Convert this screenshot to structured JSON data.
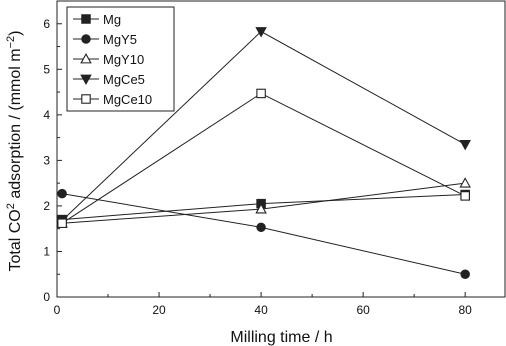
{
  "chart_data": {
    "type": "line",
    "x": [
      1,
      40,
      80
    ],
    "xlabel": "Milling time / h",
    "ylabel": "Total CO2 adsorption / (mmol m−2)",
    "ylabel_parts": {
      "pre": "Total CO",
      "sup": "2",
      "mid": " adsorption / (mmol m",
      "sup2": "−2",
      "post": ")"
    },
    "xlim": [
      0,
      88
    ],
    "ylim": [
      0,
      6.5
    ],
    "xticks": [
      0,
      20,
      40,
      60,
      80
    ],
    "yticks": [
      0,
      1,
      2,
      3,
      4,
      5,
      6
    ],
    "grid": false,
    "legend_position": "top-left",
    "series": [
      {
        "name": "Mg",
        "marker": "square-filled",
        "values": [
          1.7,
          2.05,
          2.25
        ]
      },
      {
        "name": "MgY5",
        "marker": "circle-filled",
        "values": [
          2.27,
          1.53,
          0.5
        ]
      },
      {
        "name": "MgY10",
        "marker": "triangle-up-open",
        "values": [
          1.62,
          1.93,
          2.5
        ]
      },
      {
        "name": "MgCe5",
        "marker": "triangle-down-filled",
        "values": [
          1.68,
          5.83,
          3.35
        ]
      },
      {
        "name": "MgCe10",
        "marker": "square-open",
        "values": [
          1.62,
          4.47,
          2.22
        ]
      }
    ],
    "line_color": "#222222"
  }
}
